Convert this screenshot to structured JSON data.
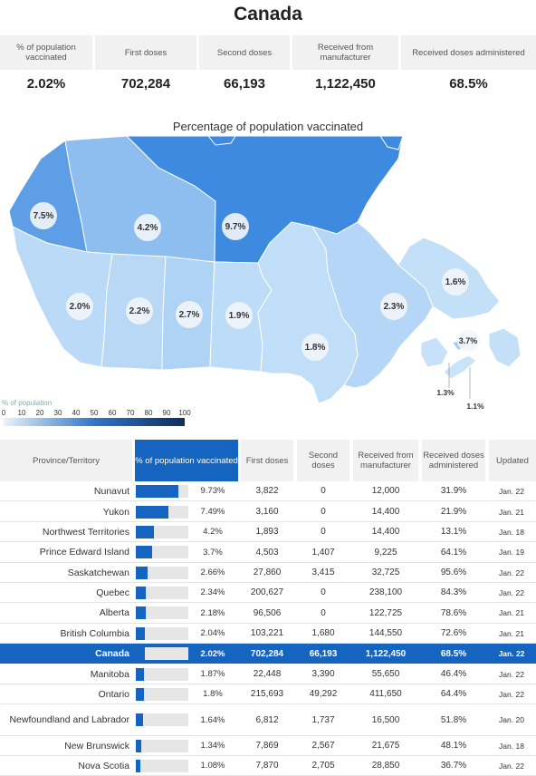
{
  "title": "Canada",
  "summary": {
    "headers": [
      "% of population vaccinated",
      "First doses",
      "Second doses",
      "Received from manufacturer",
      "Received doses administered"
    ],
    "values": [
      "2.02%",
      "702,284",
      "66,193",
      "1,122,450",
      "68.5%"
    ]
  },
  "map": {
    "title": "Percentage of population vaccinated",
    "legend_title": "% of population",
    "legend_ticks": [
      "0",
      "10",
      "20",
      "30",
      "40",
      "50",
      "60",
      "70",
      "80",
      "90",
      "100"
    ],
    "regions": [
      {
        "name": "Yukon",
        "label": "7.5%",
        "value": 7.49,
        "color": "#5d9ee6"
      },
      {
        "name": "Northwest Territories",
        "label": "4.2%",
        "value": 4.2,
        "color": "#8ebdf0"
      },
      {
        "name": "Nunavut",
        "label": "9.7%",
        "value": 9.73,
        "color": "#3e8ae0"
      },
      {
        "name": "British Columbia",
        "label": "2.0%",
        "value": 2.04,
        "color": "#bbdaf7"
      },
      {
        "name": "Alberta",
        "label": "2.2%",
        "value": 2.18,
        "color": "#b8d8f6"
      },
      {
        "name": "Saskatchewan",
        "label": "2.7%",
        "value": 2.66,
        "color": "#afd3f5"
      },
      {
        "name": "Manitoba",
        "label": "1.9%",
        "value": 1.87,
        "color": "#bddcf7"
      },
      {
        "name": "Ontario",
        "label": "1.8%",
        "value": 1.8,
        "color": "#c1def8"
      },
      {
        "name": "Quebec",
        "label": "2.3%",
        "value": 2.34,
        "color": "#b5d6f6"
      },
      {
        "name": "Newfoundland and Labrador",
        "label": "1.6%",
        "value": 1.64,
        "color": "#c4e0f8"
      },
      {
        "name": "Prince Edward Island",
        "label": "3.7%",
        "value": 3.7,
        "color": "#a3ccf3"
      },
      {
        "name": "New Brunswick",
        "label": "1.3%",
        "value": 1.34,
        "color": "#c6e1f8"
      },
      {
        "name": "Nova Scotia",
        "label": "1.1%",
        "value": 1.08,
        "color": "#c9e3f9"
      }
    ]
  },
  "table": {
    "headers": [
      "Province/Territory",
      "% of population vaccinated",
      "First doses",
      "Second doses",
      "Received from manufacturer",
      "Received doses administered",
      "Updated"
    ],
    "rows": [
      {
        "name": "Nunavut",
        "pct": "9.73%",
        "value": 9.73,
        "first": "3,822",
        "second": "0",
        "received": "12,000",
        "administered": "31.9%",
        "updated": "Jan. 22"
      },
      {
        "name": "Yukon",
        "pct": "7.49%",
        "value": 7.49,
        "first": "3,160",
        "second": "0",
        "received": "14,400",
        "administered": "21.9%",
        "updated": "Jan. 21"
      },
      {
        "name": "Northwest Territories",
        "pct": "4.2%",
        "value": 4.2,
        "first": "1,893",
        "second": "0",
        "received": "14,400",
        "administered": "13.1%",
        "updated": "Jan. 18"
      },
      {
        "name": "Prince Edward Island",
        "pct": "3.7%",
        "value": 3.7,
        "first": "4,503",
        "second": "1,407",
        "received": "9,225",
        "administered": "64.1%",
        "updated": "Jan. 19"
      },
      {
        "name": "Saskatchewan",
        "pct": "2.66%",
        "value": 2.66,
        "first": "27,860",
        "second": "3,415",
        "received": "32,725",
        "administered": "95.6%",
        "updated": "Jan. 22"
      },
      {
        "name": "Quebec",
        "pct": "2.34%",
        "value": 2.34,
        "first": "200,627",
        "second": "0",
        "received": "238,100",
        "administered": "84.3%",
        "updated": "Jan. 22"
      },
      {
        "name": "Alberta",
        "pct": "2.18%",
        "value": 2.18,
        "first": "96,506",
        "second": "0",
        "received": "122,725",
        "administered": "78.6%",
        "updated": "Jan. 21"
      },
      {
        "name": "British Columbia",
        "pct": "2.04%",
        "value": 2.04,
        "first": "103,221",
        "second": "1,680",
        "received": "144,550",
        "administered": "72.6%",
        "updated": "Jan. 21"
      },
      {
        "name": "Canada",
        "pct": "2.02%",
        "value": 2.02,
        "first": "702,284",
        "second": "66,193",
        "received": "1,122,450",
        "administered": "68.5%",
        "updated": "Jan. 22",
        "highlight": true
      },
      {
        "name": "Manitoba",
        "pct": "1.87%",
        "value": 1.87,
        "first": "22,448",
        "second": "3,390",
        "received": "55,650",
        "administered": "46.4%",
        "updated": "Jan. 22"
      },
      {
        "name": "Ontario",
        "pct": "1.8%",
        "value": 1.8,
        "first": "215,693",
        "second": "49,292",
        "received": "411,650",
        "administered": "64.4%",
        "updated": "Jan. 22"
      },
      {
        "name": "Newfoundland and Labrador",
        "pct": "1.64%",
        "value": 1.64,
        "first": "6,812",
        "second": "1,737",
        "received": "16,500",
        "administered": "51.8%",
        "updated": "Jan. 20"
      },
      {
        "name": "New Brunswick",
        "pct": "1.34%",
        "value": 1.34,
        "first": "7,869",
        "second": "2,567",
        "received": "21,675",
        "administered": "48.1%",
        "updated": "Jan. 18"
      },
      {
        "name": "Nova Scotia",
        "pct": "1.08%",
        "value": 1.08,
        "first": "7,870",
        "second": "2,705",
        "received": "28,850",
        "administered": "36.7%",
        "updated": "Jan. 22"
      }
    ]
  }
}
